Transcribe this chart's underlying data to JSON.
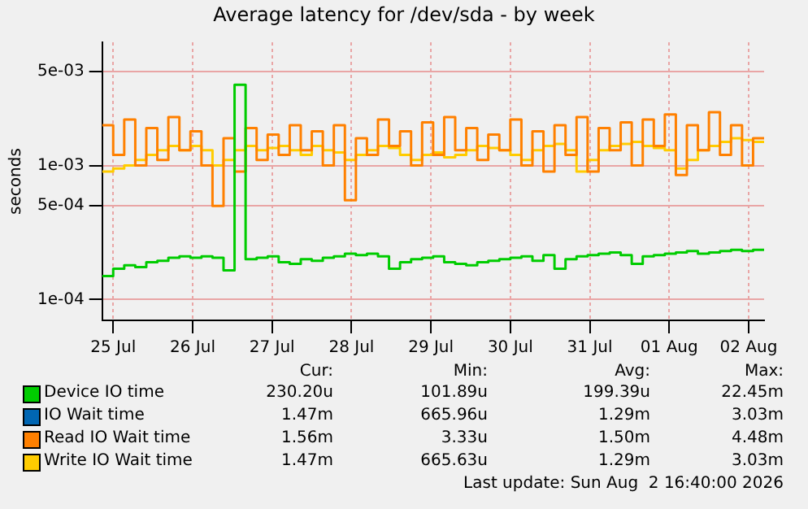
{
  "chart_data": {
    "type": "step",
    "title": "Average latency for /dev/sda - by week",
    "ylabel": "seconds",
    "log": true,
    "grid": true,
    "legend": "bottom",
    "marker": "none",
    "x": [
      "2026-07-25T08:40",
      "2026-07-25T12:00",
      "2026-07-25T15:20",
      "2026-07-25T18:40",
      "2026-07-25T22:00",
      "2026-07-26T01:20",
      "2026-07-26T04:40",
      "2026-07-26T08:00",
      "2026-07-26T11:20",
      "2026-07-26T14:40",
      "2026-07-26T18:00",
      "2026-07-26T21:20",
      "2026-07-27T00:40",
      "2026-07-27T04:00",
      "2026-07-27T07:20",
      "2026-07-27T10:40",
      "2026-07-27T14:00",
      "2026-07-27T17:20",
      "2026-07-27T20:40",
      "2026-07-28T00:00",
      "2026-07-28T03:20",
      "2026-07-28T06:40",
      "2026-07-28T10:00",
      "2026-07-28T13:20",
      "2026-07-28T16:40",
      "2026-07-28T20:00",
      "2026-07-28T23:20",
      "2026-07-29T02:40",
      "2026-07-29T06:00",
      "2026-07-29T09:20",
      "2026-07-29T12:40",
      "2026-07-29T16:00",
      "2026-07-29T19:20",
      "2026-07-29T22:40",
      "2026-07-30T02:00",
      "2026-07-30T05:20",
      "2026-07-30T08:40",
      "2026-07-30T12:00",
      "2026-07-30T15:20",
      "2026-07-30T18:40",
      "2026-07-30T22:00",
      "2026-07-31T01:20",
      "2026-07-31T04:40",
      "2026-07-31T08:00",
      "2026-07-31T11:20",
      "2026-07-31T14:40",
      "2026-07-31T18:00",
      "2026-07-31T21:20",
      "2026-08-01T00:40",
      "2026-08-01T04:00",
      "2026-08-01T07:20",
      "2026-08-01T10:40",
      "2026-08-01T14:00",
      "2026-08-01T17:20",
      "2026-08-01T20:40",
      "2026-08-02T00:00",
      "2026-08-02T03:20",
      "2026-08-02T06:40",
      "2026-08-02T10:00",
      "2026-08-02T13:20",
      "2026-08-02T16:40"
    ],
    "xlim": [
      "2026-07-25T08:40",
      "2026-08-02T16:40"
    ],
    "xticks": [
      {
        "value": "2026-07-25T12:00",
        "label": "25 Jul"
      },
      {
        "value": "2026-07-26T12:00",
        "label": "26 Jul"
      },
      {
        "value": "2026-07-27T12:00",
        "label": "27 Jul"
      },
      {
        "value": "2026-07-28T12:00",
        "label": "28 Jul"
      },
      {
        "value": "2026-07-29T12:00",
        "label": "29 Jul"
      },
      {
        "value": "2026-07-30T12:00",
        "label": "30 Jul"
      },
      {
        "value": "2026-07-31T12:00",
        "label": "31 Jul"
      },
      {
        "value": "2026-08-01T12:00",
        "label": "01 Aug"
      },
      {
        "value": "2026-08-02T12:00",
        "label": "02 Aug"
      }
    ],
    "ylim": [
      7e-05,
      0.0083
    ],
    "yticks": [
      {
        "value": 0.0001,
        "label": "1e-04"
      },
      {
        "value": 0.0005,
        "label": "5e-04"
      },
      {
        "value": 0.001,
        "label": "1e-03"
      },
      {
        "value": 0.005,
        "label": "5e-03"
      }
    ],
    "series": [
      {
        "name": "Device IO time",
        "color": "#00cc00",
        "values": [
          0.00015,
          0.00017,
          0.00018,
          0.000175,
          0.00019,
          0.000195,
          0.000205,
          0.00021,
          0.000205,
          0.00021,
          0.000205,
          0.000165,
          0.004,
          0.0002,
          0.000205,
          0.00021,
          0.00019,
          0.000185,
          0.0002,
          0.000195,
          0.000205,
          0.00021,
          0.00022,
          0.000215,
          0.00022,
          0.00021,
          0.00017,
          0.00019,
          0.0002,
          0.000205,
          0.00021,
          0.00019,
          0.000185,
          0.00018,
          0.00019,
          0.000195,
          0.0002,
          0.000205,
          0.00021,
          0.000195,
          0.000215,
          0.00017,
          0.0002,
          0.00021,
          0.000215,
          0.00022,
          0.000225,
          0.000215,
          0.000185,
          0.00021,
          0.000215,
          0.00022,
          0.000225,
          0.00023,
          0.00022,
          0.000225,
          0.00023,
          0.000235,
          0.00023,
          0.000235,
          0.00023
        ]
      },
      {
        "name": "IO Wait time",
        "color": "#0066b3",
        "values": [
          null,
          null,
          null,
          null,
          null,
          null,
          null,
          null,
          null,
          null,
          null,
          null,
          null,
          null,
          null,
          null,
          null,
          null,
          null,
          null,
          null,
          null,
          null,
          null,
          null,
          null,
          null,
          null,
          null,
          null,
          null,
          null,
          null,
          null,
          null,
          null,
          null,
          null,
          null,
          null,
          null,
          null,
          null,
          null,
          null,
          null,
          null,
          null,
          null,
          null,
          null,
          null,
          null,
          null,
          null,
          null,
          null,
          null,
          null,
          null,
          null
        ]
      },
      {
        "name": "Read IO Wait time",
        "color": "#ff8000",
        "values": [
          0.002,
          0.0012,
          0.0022,
          0.001,
          0.0019,
          0.0011,
          0.0023,
          0.0013,
          0.0018,
          0.001,
          0.0005,
          0.0016,
          0.0009,
          0.0019,
          0.0011,
          0.0017,
          0.0012,
          0.002,
          0.0013,
          0.0018,
          0.001,
          0.002,
          0.00055,
          0.0016,
          0.0012,
          0.0022,
          0.0014,
          0.0018,
          0.001,
          0.0021,
          0.0012,
          0.0023,
          0.0013,
          0.0019,
          0.0011,
          0.0017,
          0.0013,
          0.0022,
          0.001,
          0.0018,
          0.0009,
          0.002,
          0.0012,
          0.0023,
          0.0009,
          0.0019,
          0.0013,
          0.0021,
          0.001,
          0.0022,
          0.0014,
          0.0024,
          0.00085,
          0.002,
          0.0013,
          0.0025,
          0.0012,
          0.002,
          0.001,
          0.0016,
          0.0016
        ]
      },
      {
        "name": "Write IO Wait time",
        "color": "#ffcc00",
        "values": [
          0.0009,
          0.00095,
          0.001,
          0.0011,
          0.0012,
          0.0013,
          0.0014,
          0.0013,
          0.0014,
          0.0013,
          0.001,
          0.0011,
          0.0013,
          0.0014,
          0.0013,
          0.00135,
          0.0014,
          0.0013,
          0.0012,
          0.0014,
          0.0013,
          0.00125,
          0.0011,
          0.0012,
          0.0013,
          0.0014,
          0.00135,
          0.0012,
          0.0011,
          0.0012,
          0.00125,
          0.00115,
          0.0012,
          0.0013,
          0.0014,
          0.00135,
          0.0013,
          0.0012,
          0.0011,
          0.0013,
          0.0014,
          0.00145,
          0.0013,
          0.0009,
          0.0011,
          0.0013,
          0.0014,
          0.00145,
          0.0015,
          0.0014,
          0.00135,
          0.0013,
          0.00095,
          0.0011,
          0.0013,
          0.0014,
          0.0015,
          0.0016,
          0.00155,
          0.0015,
          0.00147
        ]
      }
    ],
    "annotations": [
      "Cur:",
      "Min:",
      "Avg:",
      "Max:",
      "230.20u",
      "101.89u",
      "199.39u",
      "22.45m",
      "1.47m",
      "665.96u",
      "1.29m",
      "3.03m",
      "1.56m",
      "3.33u",
      "1.50m",
      "4.48m",
      "1.47m",
      "665.63u",
      "1.29m",
      "3.03m",
      "Last update: Sun Aug  2 16:40:00 2026"
    ]
  }
}
